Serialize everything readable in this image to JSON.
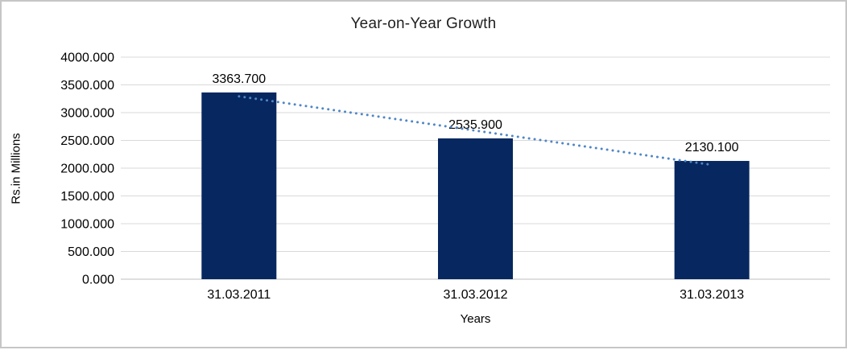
{
  "frame": {
    "background": "#ffffff",
    "border_color": "#c6c6c6"
  },
  "chart_data": {
    "type": "bar",
    "title": "Year-on-Year Growth",
    "categories": [
      "31.03.2011",
      "31.03.2012",
      "31.03.2013"
    ],
    "values": [
      3363.7,
      2535.9,
      2130.1
    ],
    "data_labels": [
      "3363.700",
      "2535.900",
      "2130.100"
    ],
    "xlabel": "Years",
    "ylabel": "Rs.in Millions",
    "ylim": [
      0,
      4000
    ],
    "ytick_step": 500,
    "ytick_labels": [
      "0.000",
      "500.000",
      "1000.000",
      "1500.000",
      "2000.000",
      "2500.000",
      "3000.000",
      "3500.000",
      "4000.000"
    ],
    "grid": true,
    "legend": "none",
    "trendline": {
      "type": "linear",
      "style": "dotted",
      "color": "#4f86c6"
    },
    "colors": {
      "bar": "#06275f",
      "gridline": "#d9d9d9",
      "axis_line": "#bfbfbf",
      "text": "#000000"
    }
  }
}
